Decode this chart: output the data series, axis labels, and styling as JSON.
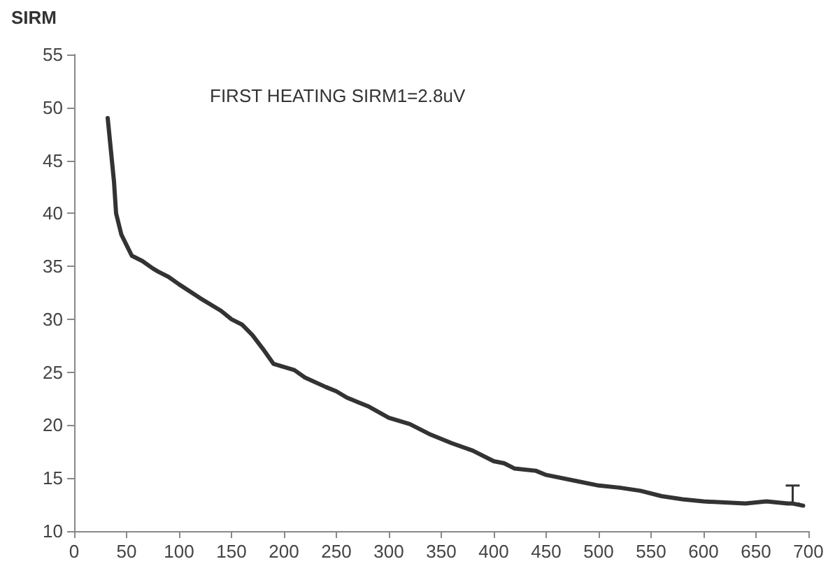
{
  "chart_data": {
    "type": "line",
    "ylabel": "SIRM",
    "annotations": [
      "FIRST HEATING SIRM1=2.8uV"
    ],
    "x": [
      32,
      35,
      38,
      40,
      45,
      50,
      55,
      65,
      75,
      80,
      90,
      100,
      120,
      140,
      150,
      160,
      170,
      180,
      190,
      200,
      210,
      220,
      240,
      250,
      260,
      280,
      300,
      320,
      340,
      360,
      380,
      400,
      410,
      420,
      440,
      450,
      480,
      500,
      520,
      540,
      560,
      580,
      600,
      620,
      640,
      660,
      680,
      685,
      695
    ],
    "series": [
      {
        "color": "#333333",
        "values": [
          49,
          46,
          43,
          40,
          38,
          37,
          36,
          35.5,
          34.8,
          34.5,
          34,
          33.3,
          32,
          30.8,
          30,
          29.5,
          28.5,
          27.2,
          25.8,
          25.5,
          25.2,
          24.5,
          23.6,
          23.2,
          22.6,
          21.8,
          20.7,
          20.1,
          19.1,
          18.3,
          17.6,
          16.6,
          16.4,
          15.9,
          15.7,
          15.3,
          14.7,
          14.3,
          14.1,
          13.8,
          13.3,
          13.0,
          12.8,
          12.7,
          12.6,
          12.8,
          12.6,
          12.6,
          12.4
        ],
        "errors": [
          null,
          null,
          null,
          null,
          null,
          null,
          null,
          null,
          null,
          null,
          null,
          null,
          null,
          null,
          null,
          null,
          null,
          null,
          null,
          null,
          null,
          null,
          null,
          null,
          null,
          null,
          null,
          null,
          null,
          null,
          null,
          null,
          null,
          null,
          null,
          null,
          null,
          null,
          null,
          null,
          null,
          null,
          null,
          null,
          null,
          null,
          null,
          [
            12.6,
            14.3
          ],
          null
        ]
      }
    ],
    "xlim": [
      0,
      700
    ],
    "xticks": [
      0,
      50,
      100,
      150,
      200,
      250,
      300,
      350,
      400,
      450,
      500,
      550,
      600,
      650,
      700
    ],
    "ylim": [
      10,
      55
    ],
    "yticks": [
      10,
      15,
      20,
      25,
      30,
      35,
      40,
      45,
      50,
      55
    ],
    "grid": false,
    "marker": "none",
    "line_style": "solid"
  }
}
